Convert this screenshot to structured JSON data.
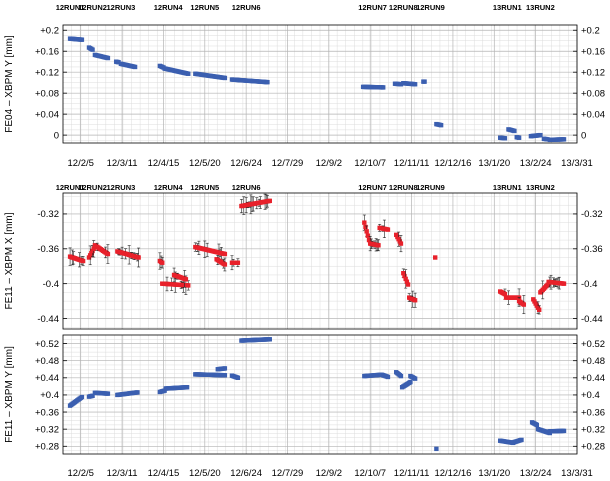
{
  "chart_data": [
    {
      "type": "scatter",
      "ylabel": "FE04 – XBPM Y [mm]",
      "ylim": [
        -0.015,
        0.21
      ],
      "yticks": [
        0,
        0.04,
        0.08,
        0.12,
        0.16,
        0.2
      ],
      "ytick_labels": [
        "0",
        "+0.04",
        "+0.08",
        "+0.12",
        "+0.16",
        "+0.2"
      ],
      "x_tick_dates": [
        "12/2/5",
        "12/3/11",
        "12/4/15",
        "12/5/20",
        "12/6/24",
        "12/7/29",
        "12/9/2",
        "12/10/7",
        "12/11/11",
        "12/12/16",
        "13/1/20",
        "13/2/24",
        "13/3/31"
      ],
      "run_labels": [
        {
          "label": "12RUN1",
          "date": "2012-01-27"
        },
        {
          "label": "12RUN2",
          "date": "2012-02-15"
        },
        {
          "label": "12RUN3",
          "date": "2012-03-10"
        },
        {
          "label": "12RUN4",
          "date": "2012-04-19"
        },
        {
          "label": "12RUN5",
          "date": "2012-05-20"
        },
        {
          "label": "12RUN6",
          "date": "2012-06-24"
        },
        {
          "label": "12RUN7",
          "date": "2012-10-09"
        },
        {
          "label": "12RUN8",
          "date": "2012-11-04"
        },
        {
          "label": "12RUN9",
          "date": "2012-11-27"
        },
        {
          "label": "13RUN1",
          "date": "2013-01-31"
        },
        {
          "label": "13RUN2",
          "date": "2013-02-28"
        }
      ],
      "marker": "square",
      "color": "#3b5fb0",
      "error_bars": false,
      "segments": [
        {
          "x0": "2012-01-27",
          "x1": "2012-02-06",
          "y0": 0.184,
          "y1": 0.182
        },
        {
          "x0": "2012-02-12",
          "x1": "2012-02-15",
          "y0": 0.167,
          "y1": 0.163
        },
        {
          "x0": "2012-02-17",
          "x1": "2012-02-28",
          "y0": 0.153,
          "y1": 0.147
        },
        {
          "x0": "2012-03-06",
          "x1": "2012-03-08",
          "y0": 0.14,
          "y1": 0.139
        },
        {
          "x0": "2012-03-10",
          "x1": "2012-03-22",
          "y0": 0.136,
          "y1": 0.13
        },
        {
          "x0": "2012-04-12",
          "x1": "2012-04-15",
          "y0": 0.132,
          "y1": 0.129
        },
        {
          "x0": "2012-04-16",
          "x1": "2012-05-06",
          "y0": 0.127,
          "y1": 0.117
        },
        {
          "x0": "2012-05-12",
          "x1": "2012-06-06",
          "y0": 0.117,
          "y1": 0.109
        },
        {
          "x0": "2012-06-12",
          "x1": "2012-07-12",
          "y0": 0.106,
          "y1": 0.101
        },
        {
          "x0": "2012-10-01",
          "x1": "2012-10-18",
          "y0": 0.092,
          "y1": 0.091
        },
        {
          "x0": "2012-10-28",
          "x1": "2012-11-02",
          "y0": 0.098,
          "y1": 0.097
        },
        {
          "x0": "2012-11-04",
          "x1": "2012-11-14",
          "y0": 0.099,
          "y1": 0.097
        },
        {
          "x0": "2012-11-21",
          "x1": "2012-11-22",
          "y0": 0.102,
          "y1": 0.102
        },
        {
          "x0": "2012-12-02",
          "x1": "2012-12-06",
          "y0": 0.021,
          "y1": 0.019
        },
        {
          "x0": "2013-01-25",
          "x1": "2013-01-29",
          "y0": -0.005,
          "y1": -0.006
        },
        {
          "x0": "2013-02-01",
          "x1": "2013-02-06",
          "y0": 0.011,
          "y1": 0.008
        },
        {
          "x0": "2013-02-08",
          "x1": "2013-02-10",
          "y0": -0.004,
          "y1": -0.005
        },
        {
          "x0": "2013-02-20",
          "x1": "2013-02-28",
          "y0": -0.002,
          "y1": 0.0
        },
        {
          "x0": "2013-03-03",
          "x1": "2013-03-06",
          "y0": -0.007,
          "y1": -0.008
        },
        {
          "x0": "2013-03-08",
          "x1": "2013-03-20",
          "y0": -0.009,
          "y1": -0.008
        }
      ]
    },
    {
      "type": "scatter",
      "ylabel": "FE11 – XBPM X [mm]",
      "ylim": [
        -0.452,
        -0.296
      ],
      "yticks": [
        -0.44,
        -0.4,
        -0.36,
        -0.32
      ],
      "ytick_labels": [
        "-0.44",
        "-0.4",
        "-0.36",
        "-0.32"
      ],
      "x_tick_dates": [],
      "run_labels": [
        {
          "label": "12RUN1",
          "date": "2012-01-27"
        },
        {
          "label": "12RUN2",
          "date": "2012-02-15"
        },
        {
          "label": "12RUN3",
          "date": "2012-03-10"
        },
        {
          "label": "12RUN4",
          "date": "2012-04-19"
        },
        {
          "label": "12RUN5",
          "date": "2012-05-20"
        },
        {
          "label": "12RUN6",
          "date": "2012-06-24"
        },
        {
          "label": "12RUN7",
          "date": "2012-10-09"
        },
        {
          "label": "12RUN8",
          "date": "2012-11-04"
        },
        {
          "label": "12RUN9",
          "date": "2012-11-27"
        },
        {
          "label": "13RUN1",
          "date": "2013-01-31"
        },
        {
          "label": "13RUN2",
          "date": "2013-02-28"
        }
      ],
      "marker": "square",
      "color": "#e8212b",
      "error_bars": true,
      "segments": [
        {
          "x0": "2012-01-27",
          "x1": "2012-02-07",
          "y0": -0.369,
          "y1": -0.374
        },
        {
          "x0": "2012-02-12",
          "x1": "2012-02-16",
          "y0": -0.37,
          "y1": -0.36
        },
        {
          "x0": "2012-02-17",
          "x1": "2012-02-28",
          "y0": -0.356,
          "y1": -0.366
        },
        {
          "x0": "2012-03-07",
          "x1": "2012-03-25",
          "y0": -0.363,
          "y1": -0.37
        },
        {
          "x0": "2012-04-12",
          "x1": "2012-04-14",
          "y0": -0.374,
          "y1": -0.376
        },
        {
          "x0": "2012-04-14",
          "x1": "2012-05-06",
          "y0": -0.4,
          "y1": -0.402
        },
        {
          "x0": "2012-04-24",
          "x1": "2012-05-04",
          "y0": -0.39,
          "y1": -0.395
        },
        {
          "x0": "2012-05-12",
          "x1": "2012-06-06",
          "y0": -0.358,
          "y1": -0.366
        },
        {
          "x0": "2012-05-30",
          "x1": "2012-06-06",
          "y0": -0.372,
          "y1": -0.378
        },
        {
          "x0": "2012-06-12",
          "x1": "2012-06-17",
          "y0": -0.376,
          "y1": -0.376
        },
        {
          "x0": "2012-06-20",
          "x1": "2012-07-14",
          "y0": -0.311,
          "y1": -0.305
        },
        {
          "x0": "2012-10-02",
          "x1": "2012-10-06",
          "y0": -0.33,
          "y1": -0.35
        },
        {
          "x0": "2012-10-07",
          "x1": "2012-10-14",
          "y0": -0.354,
          "y1": -0.356
        },
        {
          "x0": "2012-10-15",
          "x1": "2012-10-22",
          "y0": -0.336,
          "y1": -0.338
        },
        {
          "x0": "2012-10-29",
          "x1": "2012-11-02",
          "y0": -0.344,
          "y1": -0.354
        },
        {
          "x0": "2012-11-04",
          "x1": "2012-11-08",
          "y0": -0.388,
          "y1": -0.401
        },
        {
          "x0": "2012-11-09",
          "x1": "2012-11-14",
          "y0": -0.416,
          "y1": -0.419
        },
        {
          "x0": "2012-12-01",
          "x1": "2012-12-01",
          "y0": -0.37,
          "y1": -0.37
        },
        {
          "x0": "2013-01-25",
          "x1": "2013-01-29",
          "y0": -0.409,
          "y1": -0.412
        },
        {
          "x0": "2013-01-30",
          "x1": "2013-02-10",
          "y0": -0.416,
          "y1": -0.416
        },
        {
          "x0": "2013-02-10",
          "x1": "2013-02-14",
          "y0": -0.42,
          "y1": -0.424
        },
        {
          "x0": "2013-02-22",
          "x1": "2013-02-27",
          "y0": -0.418,
          "y1": -0.43
        },
        {
          "x0": "2013-02-28",
          "x1": "2013-03-07",
          "y0": -0.41,
          "y1": -0.4
        },
        {
          "x0": "2013-03-07",
          "x1": "2013-03-20",
          "y0": -0.398,
          "y1": -0.4
        }
      ]
    },
    {
      "type": "scatter",
      "ylabel": "FE11 – XBPM Y [mm]",
      "ylim": [
        0.262,
        0.54
      ],
      "yticks": [
        0.28,
        0.32,
        0.36,
        0.4,
        0.44,
        0.48,
        0.52
      ],
      "ytick_labels": [
        "+0.28",
        "+0.32",
        "+0.36",
        "+0.4",
        "+0.44",
        "+0.48",
        "+0.52"
      ],
      "x_tick_dates": [
        "12/2/5",
        "12/3/11",
        "12/4/15",
        "12/5/20",
        "12/6/24",
        "12/7/29",
        "12/9/2",
        "12/10/7",
        "12/11/11",
        "12/12/16",
        "13/1/20",
        "13/2/24",
        "13/3/31"
      ],
      "run_labels": [],
      "marker": "square",
      "color": "#3b5fb0",
      "error_bars": false,
      "segments": [
        {
          "x0": "2012-01-27",
          "x1": "2012-02-06",
          "y0": 0.375,
          "y1": 0.395
        },
        {
          "x0": "2012-02-12",
          "x1": "2012-02-15",
          "y0": 0.396,
          "y1": 0.398
        },
        {
          "x0": "2012-02-17",
          "x1": "2012-02-28",
          "y0": 0.405,
          "y1": 0.403
        },
        {
          "x0": "2012-03-07",
          "x1": "2012-03-24",
          "y0": 0.4,
          "y1": 0.406
        },
        {
          "x0": "2012-04-12",
          "x1": "2012-04-16",
          "y0": 0.407,
          "y1": 0.41
        },
        {
          "x0": "2012-04-17",
          "x1": "2012-05-05",
          "y0": 0.415,
          "y1": 0.418
        },
        {
          "x0": "2012-05-12",
          "x1": "2012-06-06",
          "y0": 0.448,
          "y1": 0.446
        },
        {
          "x0": "2012-05-31",
          "x1": "2012-06-06",
          "y0": 0.46,
          "y1": 0.462
        },
        {
          "x0": "2012-06-12",
          "x1": "2012-06-17",
          "y0": 0.445,
          "y1": 0.44
        },
        {
          "x0": "2012-06-20",
          "x1": "2012-07-14",
          "y0": 0.527,
          "y1": 0.53
        },
        {
          "x0": "2012-10-02",
          "x1": "2012-10-16",
          "y0": 0.444,
          "y1": 0.447
        },
        {
          "x0": "2012-10-17",
          "x1": "2012-10-22",
          "y0": 0.447,
          "y1": 0.442
        },
        {
          "x0": "2012-10-29",
          "x1": "2012-11-02",
          "y0": 0.453,
          "y1": 0.444
        },
        {
          "x0": "2012-11-03",
          "x1": "2012-11-10",
          "y0": 0.418,
          "y1": 0.43
        },
        {
          "x0": "2012-11-10",
          "x1": "2012-11-14",
          "y0": 0.444,
          "y1": 0.438
        },
        {
          "x0": "2012-12-02",
          "x1": "2012-12-02",
          "y0": 0.274,
          "y1": 0.274
        },
        {
          "x0": "2013-01-25",
          "x1": "2013-02-05",
          "y0": 0.293,
          "y1": 0.288
        },
        {
          "x0": "2013-02-05",
          "x1": "2013-02-12",
          "y0": 0.289,
          "y1": 0.295
        },
        {
          "x0": "2013-02-21",
          "x1": "2013-02-25",
          "y0": 0.336,
          "y1": 0.33
        },
        {
          "x0": "2013-02-26",
          "x1": "2013-03-08",
          "y0": 0.32,
          "y1": 0.311
        },
        {
          "x0": "2013-03-08",
          "x1": "2013-03-20",
          "y0": 0.315,
          "y1": 0.316
        }
      ]
    }
  ]
}
